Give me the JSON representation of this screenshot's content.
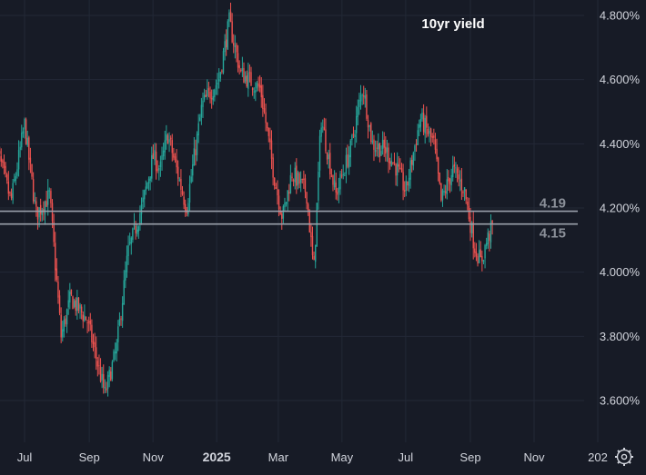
{
  "chart_data": {
    "type": "candlestick",
    "title": "10yr yield",
    "y_unit_suffix": "%",
    "ylim": [
      3.48,
      4.83
    ],
    "y_ticks": [
      {
        "value": 4.8,
        "label": "4.800%"
      },
      {
        "value": 4.6,
        "label": "4.600%"
      },
      {
        "value": 4.4,
        "label": "4.400%"
      },
      {
        "value": 4.2,
        "label": "4.200%"
      },
      {
        "value": 4.0,
        "label": "4.000%"
      },
      {
        "value": 3.8,
        "label": "3.800%"
      },
      {
        "value": 3.6,
        "label": "3.600%"
      }
    ],
    "x_ticks": [
      {
        "label": "Jul",
        "bold": false
      },
      {
        "label": "Sep",
        "bold": false
      },
      {
        "label": "Nov",
        "bold": false
      },
      {
        "label": "2025",
        "bold": true
      },
      {
        "label": "Mar",
        "bold": false
      },
      {
        "label": "May",
        "bold": false
      },
      {
        "label": "Jul",
        "bold": false
      },
      {
        "label": "Sep",
        "bold": false
      },
      {
        "label": "Nov",
        "bold": false
      },
      {
        "label": "202",
        "bold": false
      }
    ],
    "levels": [
      {
        "value": 4.19,
        "label": "4.19"
      },
      {
        "value": 4.15,
        "label": "4.15"
      }
    ],
    "colors": {
      "background": "#171b26",
      "grid": "#232836",
      "up": "#26a69a",
      "down": "#ef5350",
      "level_line": "#9aa0ab",
      "level_label": "#8b9099",
      "axis_text": "#d1d4dc",
      "title": "#ffffff"
    },
    "grid": true,
    "settings_icon": "gear-icon",
    "anchors": [
      [
        "2024-06-03",
        4.4
      ],
      [
        "2024-06-18",
        4.22
      ],
      [
        "2024-07-01",
        4.46
      ],
      [
        "2024-07-12",
        4.18
      ],
      [
        "2024-07-25",
        4.24
      ],
      [
        "2024-08-05",
        3.8
      ],
      [
        "2024-08-14",
        3.92
      ],
      [
        "2024-08-30",
        3.85
      ],
      [
        "2024-09-16",
        3.62
      ],
      [
        "2024-09-27",
        3.76
      ],
      [
        "2024-10-08",
        4.06
      ],
      [
        "2024-10-22",
        4.21
      ],
      [
        "2024-11-01",
        4.36
      ],
      [
        "2024-11-08",
        4.32
      ],
      [
        "2024-11-15",
        4.43
      ],
      [
        "2024-12-03",
        4.2
      ],
      [
        "2024-12-18",
        4.52
      ],
      [
        "2025-01-03",
        4.6
      ],
      [
        "2025-01-13",
        4.78
      ],
      [
        "2025-01-24",
        4.62
      ],
      [
        "2025-02-12",
        4.57
      ],
      [
        "2025-02-26",
        4.28
      ],
      [
        "2025-03-05",
        4.17
      ],
      [
        "2025-03-14",
        4.31
      ],
      [
        "2025-03-28",
        4.25
      ],
      [
        "2025-04-04",
        4.0
      ],
      [
        "2025-04-11",
        4.48
      ],
      [
        "2025-04-25",
        4.24
      ],
      [
        "2025-05-09",
        4.38
      ],
      [
        "2025-05-21",
        4.58
      ],
      [
        "2025-05-30",
        4.4
      ],
      [
        "2025-06-12",
        4.38
      ],
      [
        "2025-06-23",
        4.32
      ],
      [
        "2025-07-01",
        4.25
      ],
      [
        "2025-07-15",
        4.48
      ],
      [
        "2025-07-28",
        4.4
      ],
      [
        "2025-08-04",
        4.22
      ],
      [
        "2025-08-15",
        4.32
      ],
      [
        "2025-08-26",
        4.26
      ],
      [
        "2025-09-05",
        4.08
      ],
      [
        "2025-09-11",
        4.03
      ],
      [
        "2025-09-17",
        4.1
      ],
      [
        "2025-09-23",
        4.15
      ]
    ]
  }
}
